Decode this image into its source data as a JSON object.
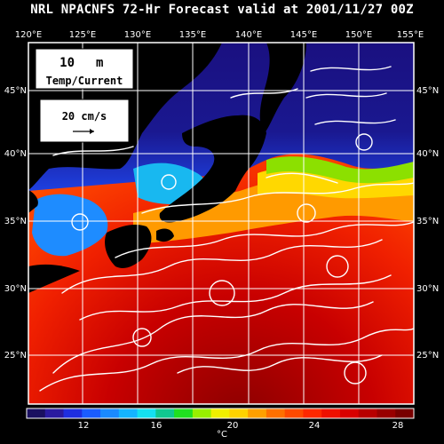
{
  "title": "NRL NPACNFS 72-Hr Forecast valid at 2001/11/27 00Z",
  "lon_labels": [
    "120°E",
    "125°E",
    "130°E",
    "135°E",
    "140°E",
    "145°E",
    "150°E",
    "155°E"
  ],
  "lat_labels": [
    "45°N",
    "40°N",
    "35°N",
    "30°N",
    "25°N"
  ],
  "depth_box": {
    "value": "10",
    "unit": "m",
    "field": "Temp/Current"
  },
  "vector_key": {
    "label": "20 cm/s"
  },
  "colorbar": {
    "ticks": [
      "12",
      "16",
      "20",
      "24",
      "28"
    ],
    "unit": "°C",
    "colors": [
      "#1a1060",
      "#2a1aa0",
      "#1e2ee0",
      "#1a5cff",
      "#1a8aff",
      "#14b4ff",
      "#14e0f0",
      "#10c890",
      "#20e020",
      "#98f000",
      "#f0f000",
      "#ffd200",
      "#ffa000",
      "#ff7000",
      "#ff4a00",
      "#ff2800",
      "#f01000",
      "#d80000",
      "#b80000",
      "#980000",
      "#780000"
    ]
  },
  "colors": {
    "background": "#000000",
    "land": "#000000",
    "grid": "#ffffff",
    "vectors": "#ffffff"
  }
}
